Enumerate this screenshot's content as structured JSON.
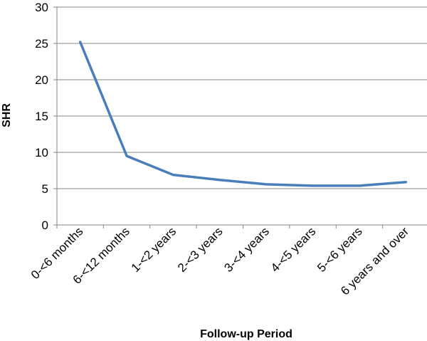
{
  "chart_data": {
    "type": "line",
    "categories": [
      "0-<6 months",
      "6-<12 months",
      "1-<2 years",
      "2-<3 years",
      "3-<4 years",
      "4-<5 years",
      "5-<6 years",
      "6 years and over"
    ],
    "series": [
      {
        "values": [
          25.2,
          9.5,
          6.9,
          6.2,
          5.6,
          5.4,
          5.4,
          5.9
        ]
      }
    ],
    "title": "",
    "xlabel": "Follow-up Period",
    "ylabel": "SHR",
    "ylim": [
      0,
      30
    ],
    "yticks": [
      0,
      5,
      10,
      15,
      20,
      25,
      30
    ],
    "grid": true,
    "legend": "none",
    "colors": {
      "line": "#4a7ebb",
      "grid": "#868686",
      "axis": "#868686"
    }
  }
}
